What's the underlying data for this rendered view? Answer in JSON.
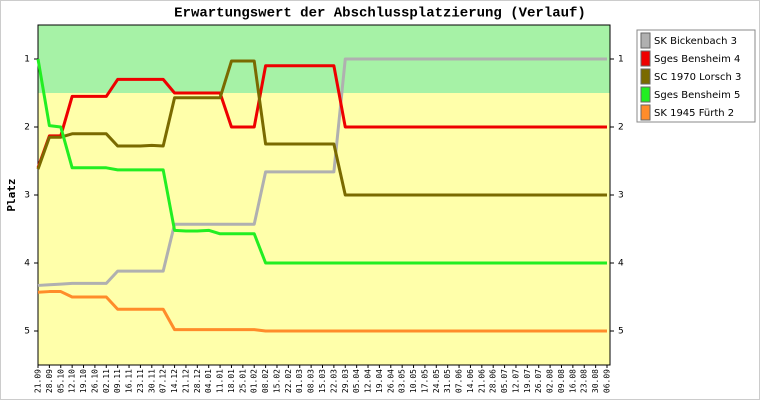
{
  "chart_data": {
    "type": "line",
    "title": "Erwartungswert der Abschlussplatzierung (Verlauf)",
    "y_label": "Platz",
    "categories": [
      "21.09",
      "28.09",
      "05.10",
      "12.10",
      "19.10",
      "26.10",
      "02.11",
      "09.11",
      "16.11",
      "23.11",
      "30.11",
      "07.12",
      "14.12",
      "21.12",
      "28.12",
      "04.01",
      "11.01",
      "18.01",
      "25.01",
      "01.02",
      "08.02",
      "15.02",
      "22.02",
      "01.03",
      "08.03",
      "15.03",
      "22.03",
      "29.03",
      "05.04",
      "12.04",
      "19.04",
      "26.04",
      "03.05",
      "10.05",
      "17.05",
      "24.05",
      "31.05",
      "07.06",
      "14.06",
      "21.06",
      "28.06",
      "05.07",
      "12.07",
      "19.07",
      "26.07",
      "02.08",
      "09.08",
      "16.08",
      "23.08",
      "30.08",
      "06.09"
    ],
    "series": [
      {
        "name": "SK Bickenbach 3",
        "color": "#b0b0b0",
        "values": [
          4.33,
          4.32,
          4.31,
          4.3,
          4.3,
          4.3,
          4.3,
          4.12,
          4.12,
          4.12,
          4.12,
          4.12,
          3.43,
          3.43,
          3.43,
          3.43,
          3.43,
          3.43,
          3.43,
          3.43,
          2.66,
          2.66,
          2.66,
          2.66,
          2.66,
          2.66,
          2.66,
          1.0,
          1.0,
          1.0,
          1.0,
          1.0,
          1.0,
          1.0,
          1.0,
          1.0,
          1.0,
          1.0,
          1.0,
          1.0,
          1.0,
          1.0,
          1.0,
          1.0,
          1.0,
          1.0,
          1.0,
          1.0,
          1.0,
          1.0,
          1.0
        ]
      },
      {
        "name": "Sges Bensheim 4",
        "color": "#ee0000",
        "values": [
          2.6,
          2.13,
          2.13,
          1.55,
          1.55,
          1.55,
          1.55,
          1.3,
          1.3,
          1.3,
          1.3,
          1.3,
          1.5,
          1.5,
          1.5,
          1.5,
          1.5,
          2.0,
          2.0,
          2.0,
          1.1,
          1.1,
          1.1,
          1.1,
          1.1,
          1.1,
          1.1,
          2.0,
          2.0,
          2.0,
          2.0,
          2.0,
          2.0,
          2.0,
          2.0,
          2.0,
          2.0,
          2.0,
          2.0,
          2.0,
          2.0,
          2.0,
          2.0,
          2.0,
          2.0,
          2.0,
          2.0,
          2.0,
          2.0,
          2.0,
          2.0
        ]
      },
      {
        "name": "SC 1970 Lorsch 3",
        "color": "#7a6a00",
        "values": [
          2.62,
          2.15,
          2.15,
          2.1,
          2.1,
          2.1,
          2.1,
          2.28,
          2.28,
          2.28,
          2.27,
          2.28,
          1.57,
          1.57,
          1.57,
          1.57,
          1.57,
          1.03,
          1.03,
          1.03,
          2.25,
          2.25,
          2.25,
          2.25,
          2.25,
          2.25,
          2.25,
          3.0,
          3.0,
          3.0,
          3.0,
          3.0,
          3.0,
          3.0,
          3.0,
          3.0,
          3.0,
          3.0,
          3.0,
          3.0,
          3.0,
          3.0,
          3.0,
          3.0,
          3.0,
          3.0,
          3.0,
          3.0,
          3.0,
          3.0,
          3.0
        ]
      },
      {
        "name": "Sges Bensheim 5",
        "color": "#22ee22",
        "values": [
          1.0,
          1.98,
          2.0,
          2.6,
          2.6,
          2.6,
          2.6,
          2.63,
          2.63,
          2.63,
          2.63,
          2.63,
          3.52,
          3.53,
          3.53,
          3.52,
          3.57,
          3.57,
          3.57,
          3.57,
          4.0,
          4.0,
          4.0,
          4.0,
          4.0,
          4.0,
          4.0,
          4.0,
          4.0,
          4.0,
          4.0,
          4.0,
          4.0,
          4.0,
          4.0,
          4.0,
          4.0,
          4.0,
          4.0,
          4.0,
          4.0,
          4.0,
          4.0,
          4.0,
          4.0,
          4.0,
          4.0,
          4.0,
          4.0,
          4.0,
          4.0
        ]
      },
      {
        "name": "SK 1945 Fürth 2",
        "color": "#ff8c2a",
        "values": [
          4.43,
          4.42,
          4.42,
          4.5,
          4.5,
          4.5,
          4.5,
          4.68,
          4.68,
          4.68,
          4.68,
          4.68,
          4.98,
          4.98,
          4.98,
          4.98,
          4.98,
          4.98,
          4.98,
          4.98,
          5.0,
          5.0,
          5.0,
          5.0,
          5.0,
          5.0,
          5.0,
          5.0,
          5.0,
          5.0,
          5.0,
          5.0,
          5.0,
          5.0,
          5.0,
          5.0,
          5.0,
          5.0,
          5.0,
          5.0,
          5.0,
          5.0,
          5.0,
          5.0,
          5.0,
          5.0,
          5.0,
          5.0,
          5.0,
          5.0,
          5.0
        ]
      }
    ],
    "ylim": [
      5.5,
      0.5
    ],
    "yticks": [
      1,
      2,
      3,
      4,
      5
    ],
    "bands": [
      {
        "from": 0.5,
        "to": 1.5,
        "color": "#a6f2a6"
      },
      {
        "from": 1.5,
        "to": 5.5,
        "color": "#ffffaa"
      }
    ],
    "legend": "right"
  }
}
